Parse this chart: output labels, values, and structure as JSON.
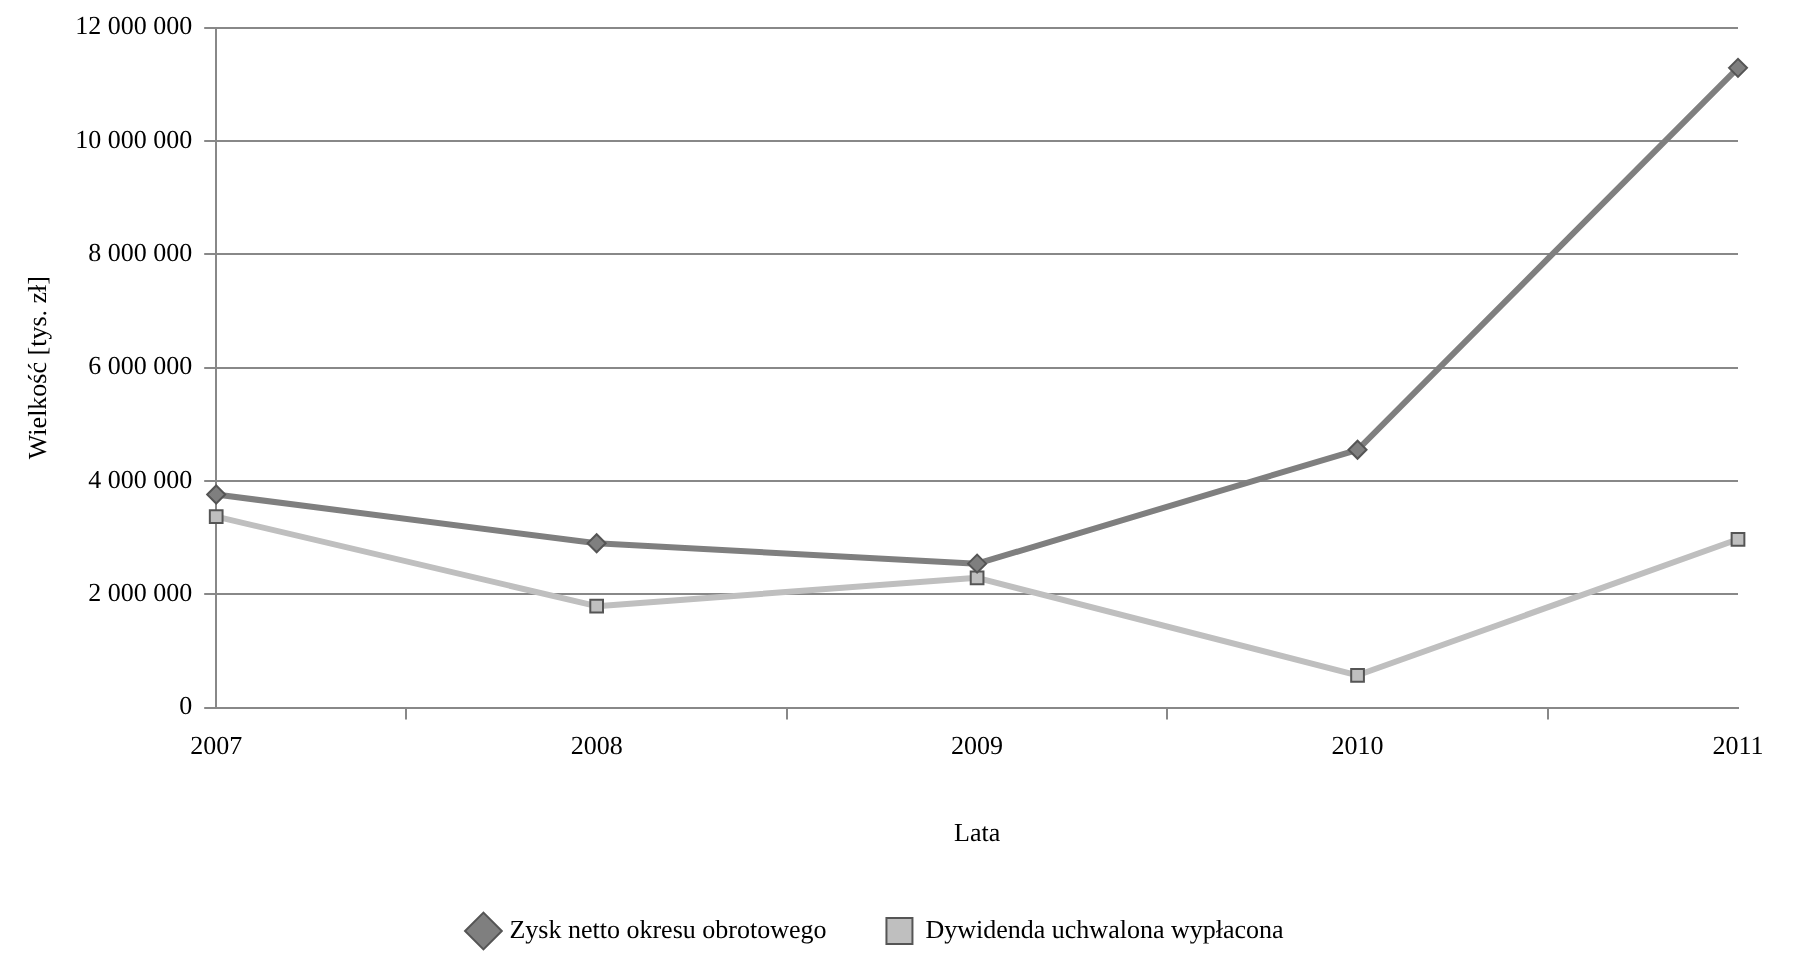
{
  "chart_data": {
    "type": "line",
    "xlabel": "Lata",
    "ylabel": "Wielkość [tys. zł]",
    "categories": [
      "2007",
      "2008",
      "2009",
      "2010",
      "2011"
    ],
    "series": [
      {
        "name": "Zysk netto okresu obrotowego",
        "color": "#7f7f7f",
        "marker": "diamond",
        "values": [
          3760000,
          2900000,
          2540000,
          4550000,
          11290000
        ]
      },
      {
        "name": "Dywidenda uchwalona wypłacona",
        "color": "#bfbfbf",
        "marker": "square",
        "values": [
          3370000,
          1790000,
          2290000,
          570000,
          2970000
        ]
      }
    ],
    "ylim": [
      0,
      12000000
    ],
    "yticks": [
      {
        "value": 0,
        "label": "0"
      },
      {
        "value": 2000000,
        "label": "2 000 000"
      },
      {
        "value": 4000000,
        "label": "4 000 000"
      },
      {
        "value": 6000000,
        "label": "6 000 000"
      },
      {
        "value": 8000000,
        "label": "8 000 000"
      },
      {
        "value": 10000000,
        "label": "10 000 000"
      },
      {
        "value": 12000000,
        "label": "12 000 000"
      }
    ],
    "grid": "y",
    "legend": "bottom",
    "line_style": "solid"
  }
}
